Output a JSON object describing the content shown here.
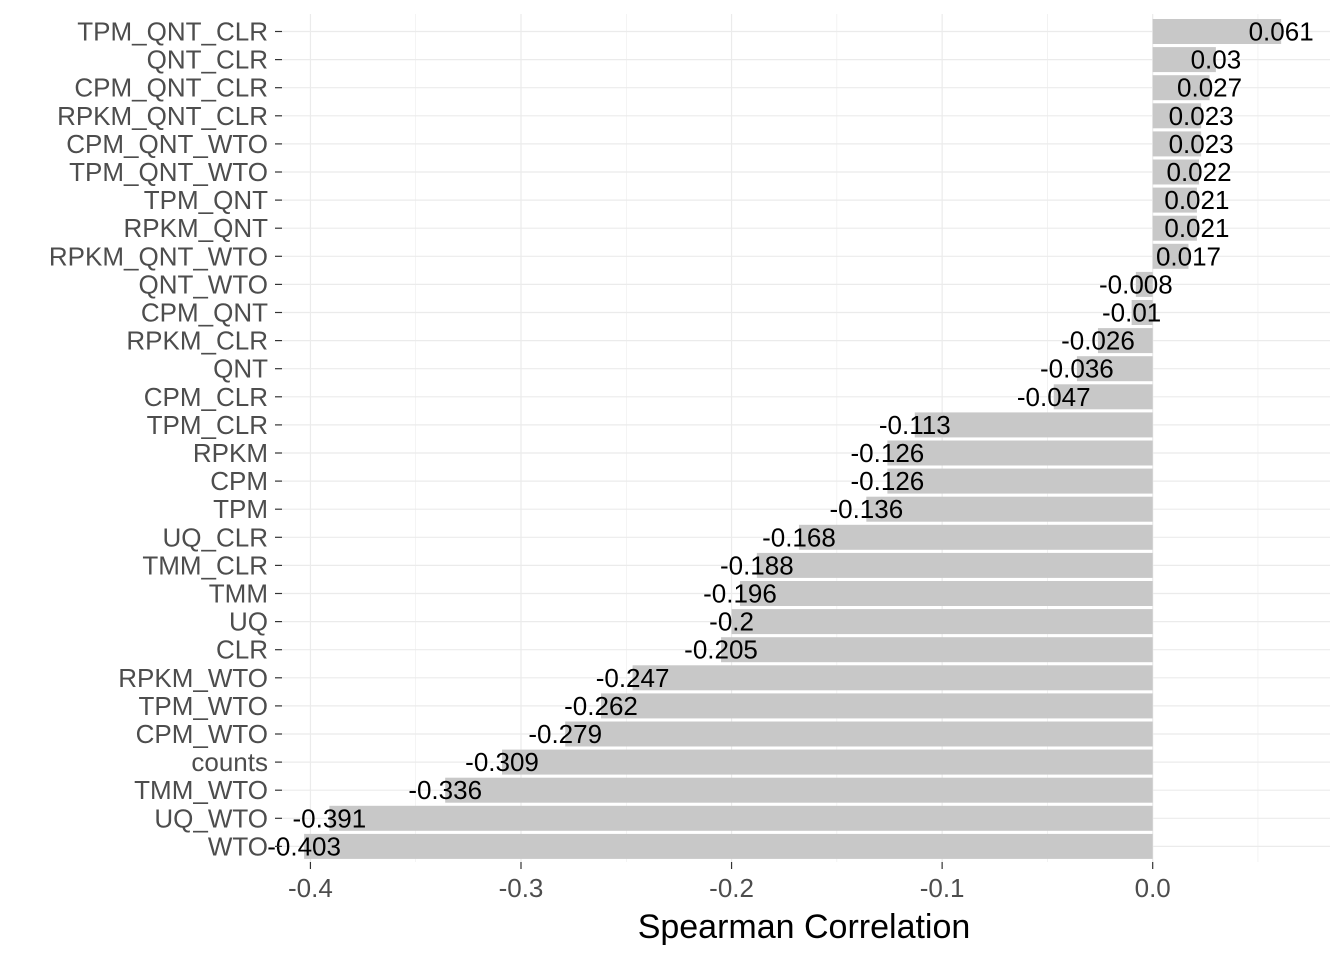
{
  "chart_data": {
    "type": "bar",
    "orientation": "horizontal",
    "categories": [
      "TPM_QNT_CLR",
      "QNT_CLR",
      "CPM_QNT_CLR",
      "RPKM_QNT_CLR",
      "CPM_QNT_WTO",
      "TPM_QNT_WTO",
      "TPM_QNT",
      "RPKM_QNT",
      "RPKM_QNT_WTO",
      "QNT_WTO",
      "CPM_QNT",
      "RPKM_CLR",
      "QNT",
      "CPM_CLR",
      "TPM_CLR",
      "RPKM",
      "CPM",
      "TPM",
      "UQ_CLR",
      "TMM_CLR",
      "TMM",
      "UQ",
      "CLR",
      "RPKM_WTO",
      "TPM_WTO",
      "CPM_WTO",
      "counts",
      "TMM_WTO",
      "UQ_WTO",
      "WTO"
    ],
    "values": [
      0.061,
      0.03,
      0.027,
      0.023,
      0.023,
      0.022,
      0.021,
      0.021,
      0.017,
      -0.008,
      -0.01,
      -0.026,
      -0.036,
      -0.047,
      -0.113,
      -0.126,
      -0.126,
      -0.136,
      -0.168,
      -0.188,
      -0.196,
      -0.2,
      -0.205,
      -0.247,
      -0.262,
      -0.279,
      -0.309,
      -0.336,
      -0.391,
      -0.403
    ],
    "value_labels": [
      "0.061",
      "0.03",
      "0.027",
      "0.023",
      "0.023",
      "0.022",
      "0.021",
      "0.021",
      "0.017",
      "-0.008",
      "-0.01",
      "-0.026",
      "-0.036",
      "-0.047",
      "-0.113",
      "-0.126",
      "-0.126",
      "-0.136",
      "-0.168",
      "-0.188",
      "-0.196",
      "-0.2",
      "-0.205",
      "-0.247",
      "-0.262",
      "-0.279",
      "-0.309",
      "-0.336",
      "-0.391",
      "-0.403"
    ],
    "title": "",
    "xlabel": "Spearman Correlation",
    "ylabel": "",
    "xlim": [
      -0.4135,
      0.0842
    ],
    "x_ticks": [
      -0.4,
      -0.3,
      -0.2,
      -0.1,
      0.0
    ],
    "x_tick_labels": [
      "-0.4",
      "-0.3",
      "-0.2",
      "-0.1",
      "0.0"
    ],
    "grid": true,
    "legend": "none",
    "colors": {
      "bar": "#c8c8c8",
      "grid": "#ebebeb",
      "tick_text": "#4d4d4d",
      "label_text": "#000000"
    }
  }
}
